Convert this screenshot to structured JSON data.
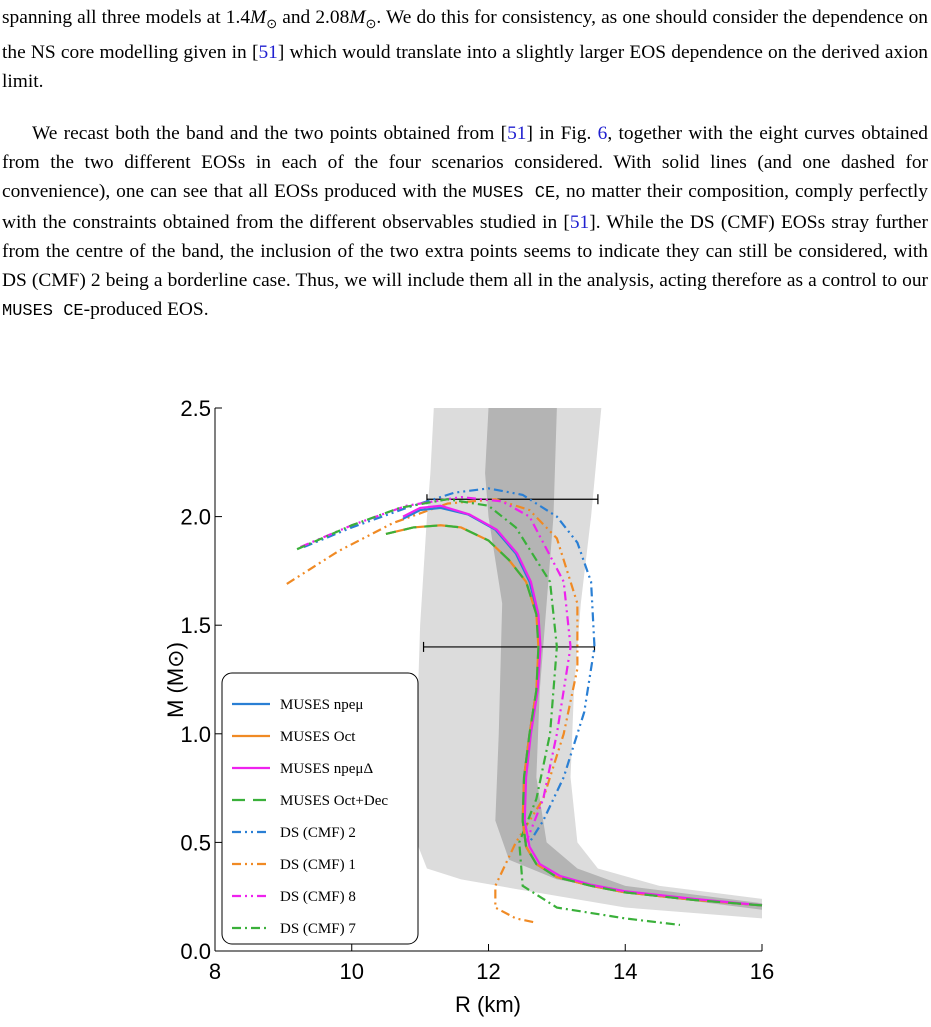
{
  "text": {
    "paragraphs": [
      [
        {
          "text": "spanning all three models at 1.4",
          "style": "plain"
        },
        {
          "text": "M",
          "style": "math"
        },
        {
          "text": "⊙",
          "style": "sub"
        },
        {
          "text": " and 2.08",
          "style": "plain"
        },
        {
          "text": "M",
          "style": "math"
        },
        {
          "text": "⊙",
          "style": "sub"
        },
        {
          "text": ". We do this for consistency, as one should consider the dependence on the NS core modelling given in [",
          "style": "plain"
        },
        {
          "text": "51",
          "style": "ref"
        },
        {
          "text": "] which would translate into a slightly larger EOS dependence on the derived axion limit.",
          "style": "plain"
        }
      ],
      [
        {
          "text": "We recast both the band and the two points obtained from [",
          "style": "plain"
        },
        {
          "text": "51",
          "style": "ref"
        },
        {
          "text": "] in Fig. ",
          "style": "plain"
        },
        {
          "text": "6",
          "style": "ref"
        },
        {
          "text": ", together with the eight curves obtained from the two different EOSs in each of the four scenarios considered. With solid lines (and one dashed for convenience), one can see that all EOSs produced with the ",
          "style": "plain"
        },
        {
          "text": "MUSES CE",
          "style": "code"
        },
        {
          "text": ", no matter their composition, comply perfectly with the constraints obtained from the different observables studied in [",
          "style": "plain"
        },
        {
          "text": "51",
          "style": "ref"
        },
        {
          "text": "]. While the DS (CMF) EOSs stray further from the centre of the band, the inclusion of the two extra points seems to indicate they can still be considered, with DS (CMF) 2 being a borderline case. Thus, we will include them all in the analysis, acting therefore as a control to our ",
          "style": "plain"
        },
        {
          "text": "MUSES CE",
          "style": "code"
        },
        {
          "text": "-produced EOS.",
          "style": "plain"
        }
      ]
    ]
  },
  "chart_data": {
    "type": "line",
    "x_label": "R (km)",
    "y_label": "M (M⊙)",
    "xlim": [
      8,
      16
    ],
    "ylim": [
      0,
      2.5
    ],
    "xticks": [
      8,
      10,
      12,
      14,
      16
    ],
    "yticks": [
      {
        "value": 0,
        "label": "0.0"
      },
      0.5,
      {
        "value": 1,
        "label": "1.0"
      },
      1.5,
      {
        "value": 2,
        "label": "2.0"
      },
      2.5
    ],
    "legend": "lower left",
    "bands": [
      {
        "color": "#dcdcdc",
        "x": [
          11.2,
          11.15,
          11.1,
          11.0,
          10.95,
          10.95,
          11.1,
          11.6,
          12.5,
          14,
          16,
          16,
          14.5,
          13.6,
          13.3,
          13.2,
          13.25,
          13.35,
          13.5,
          13.65
        ],
        "y": [
          2.5,
          2.2,
          2.0,
          1.5,
          1.0,
          0.5,
          0.38,
          0.33,
          0.28,
          0.2,
          0.15,
          0.24,
          0.3,
          0.38,
          0.5,
          0.8,
          1.2,
          1.6,
          2.0,
          2.5
        ]
      },
      {
        "color": "#b4b4b4",
        "x": [
          12.0,
          11.95,
          12.0,
          12.2,
          12.15,
          12.1,
          12.3,
          13,
          14,
          16,
          16,
          14,
          13.3,
          12.85,
          12.7,
          12.75,
          12.85,
          12.95,
          13.0
        ],
        "y": [
          2.5,
          2.2,
          2.0,
          1.6,
          1.0,
          0.6,
          0.42,
          0.33,
          0.27,
          0.19,
          0.22,
          0.3,
          0.38,
          0.5,
          0.8,
          1.2,
          1.6,
          2.0,
          2.5
        ]
      }
    ],
    "error_bars": [
      {
        "y": 1.4,
        "xmin": 11.05,
        "xmax": 13.55
      },
      {
        "y": 2.08,
        "xmin": 11.1,
        "xmax": 13.6
      }
    ],
    "series": [
      {
        "name": "MUSES npeμ",
        "color": "#2a7fd4",
        "dash": "solid",
        "x": [
          16,
          15,
          14,
          13.5,
          13,
          12.7,
          12.55,
          12.5,
          12.52,
          12.6,
          12.7,
          12.75,
          12.72,
          12.6,
          12.4,
          12.1,
          11.7,
          11.3,
          11.0,
          10.75
        ],
        "y": [
          0.21,
          0.235,
          0.27,
          0.3,
          0.34,
          0.4,
          0.48,
          0.6,
          0.8,
          1.0,
          1.2,
          1.4,
          1.55,
          1.7,
          1.83,
          1.94,
          2.01,
          2.04,
          2.03,
          1.99
        ]
      },
      {
        "name": "MUSES Oct",
        "color": "#f08a24",
        "dash": "solid",
        "x": [
          16,
          15,
          14,
          13.5,
          13,
          12.7,
          12.55,
          12.5,
          12.52,
          12.6,
          12.7,
          12.73,
          12.7,
          12.55,
          12.3,
          12.0,
          11.6,
          11.3,
          10.9,
          10.5
        ],
        "y": [
          0.21,
          0.235,
          0.27,
          0.3,
          0.34,
          0.4,
          0.48,
          0.6,
          0.8,
          1.0,
          1.2,
          1.4,
          1.55,
          1.7,
          1.8,
          1.89,
          1.95,
          1.96,
          1.95,
          1.92
        ]
      },
      {
        "name": "MUSES npeμΔ",
        "color": "#ee22ee",
        "dash": "solid",
        "x": [
          16,
          15,
          14,
          13.5,
          13.05,
          12.75,
          12.6,
          12.53,
          12.55,
          12.62,
          12.72,
          12.76,
          12.73,
          12.62,
          12.42,
          12.12,
          11.72,
          11.3,
          11.0,
          10.75
        ],
        "y": [
          0.21,
          0.24,
          0.275,
          0.305,
          0.345,
          0.4,
          0.48,
          0.6,
          0.8,
          1.0,
          1.2,
          1.4,
          1.55,
          1.7,
          1.83,
          1.94,
          2.01,
          2.05,
          2.04,
          2.0
        ]
      },
      {
        "name": "MUSES Oct+Dec",
        "color": "#3ab03a",
        "dash": "dashed",
        "x": [
          16,
          15,
          14,
          13.5,
          13,
          12.7,
          12.55,
          12.5,
          12.52,
          12.6,
          12.7,
          12.73,
          12.7,
          12.55,
          12.3,
          12.0,
          11.6,
          11.3,
          10.9,
          10.5
        ],
        "y": [
          0.21,
          0.235,
          0.27,
          0.3,
          0.34,
          0.4,
          0.48,
          0.6,
          0.8,
          1.0,
          1.2,
          1.4,
          1.55,
          1.7,
          1.8,
          1.89,
          1.95,
          1.96,
          1.95,
          1.92
        ]
      },
      {
        "name": "DS (CMF) 2",
        "color": "#2a7fd4",
        "dash": "dashdotdot",
        "x": [
          9.3,
          10.0,
          10.8,
          11.5,
          12.0,
          12.5,
          13.0,
          13.3,
          13.5,
          13.55,
          13.4,
          13.1,
          12.8,
          12.6
        ],
        "y": [
          1.86,
          1.95,
          2.04,
          2.11,
          2.13,
          2.1,
          2.0,
          1.88,
          1.7,
          1.4,
          1.1,
          0.8,
          0.6,
          0.5
        ]
      },
      {
        "name": "DS (CMF) 1",
        "color": "#f08a24",
        "dash": "dashdotdot",
        "x": [
          9.05,
          9.8,
          10.6,
          11.4,
          12.1,
          12.6,
          13.0,
          13.3,
          13.3,
          13.1,
          12.8,
          12.4,
          12.1,
          12.1,
          12.4,
          12.7
        ],
        "y": [
          1.69,
          1.84,
          1.97,
          2.06,
          2.08,
          2.03,
          1.9,
          1.6,
          1.3,
          1.0,
          0.7,
          0.5,
          0.3,
          0.2,
          0.15,
          0.13
        ]
      },
      {
        "name": "DS (CMF) 8",
        "color": "#ee22ee",
        "dash": "dashdotdot",
        "x": [
          9.25,
          10.0,
          10.8,
          11.6,
          12.2,
          12.6,
          13.1,
          13.2,
          13.0,
          12.8,
          12.55
        ],
        "y": [
          1.86,
          1.96,
          2.05,
          2.09,
          2.07,
          2.0,
          1.7,
          1.4,
          1.0,
          0.7,
          0.5
        ]
      },
      {
        "name": "DS (CMF) 7",
        "color": "#3ab03a",
        "dash": "dashdot",
        "x": [
          9.2,
          10.0,
          10.7,
          11.4,
          12.0,
          12.4,
          12.9,
          13.0,
          12.9,
          12.7,
          12.45,
          12.5,
          13.0,
          14.0,
          14.8
        ],
        "y": [
          1.85,
          1.96,
          2.04,
          2.08,
          2.05,
          1.95,
          1.7,
          1.4,
          1.0,
          0.7,
          0.5,
          0.3,
          0.2,
          0.15,
          0.12
        ]
      }
    ]
  }
}
